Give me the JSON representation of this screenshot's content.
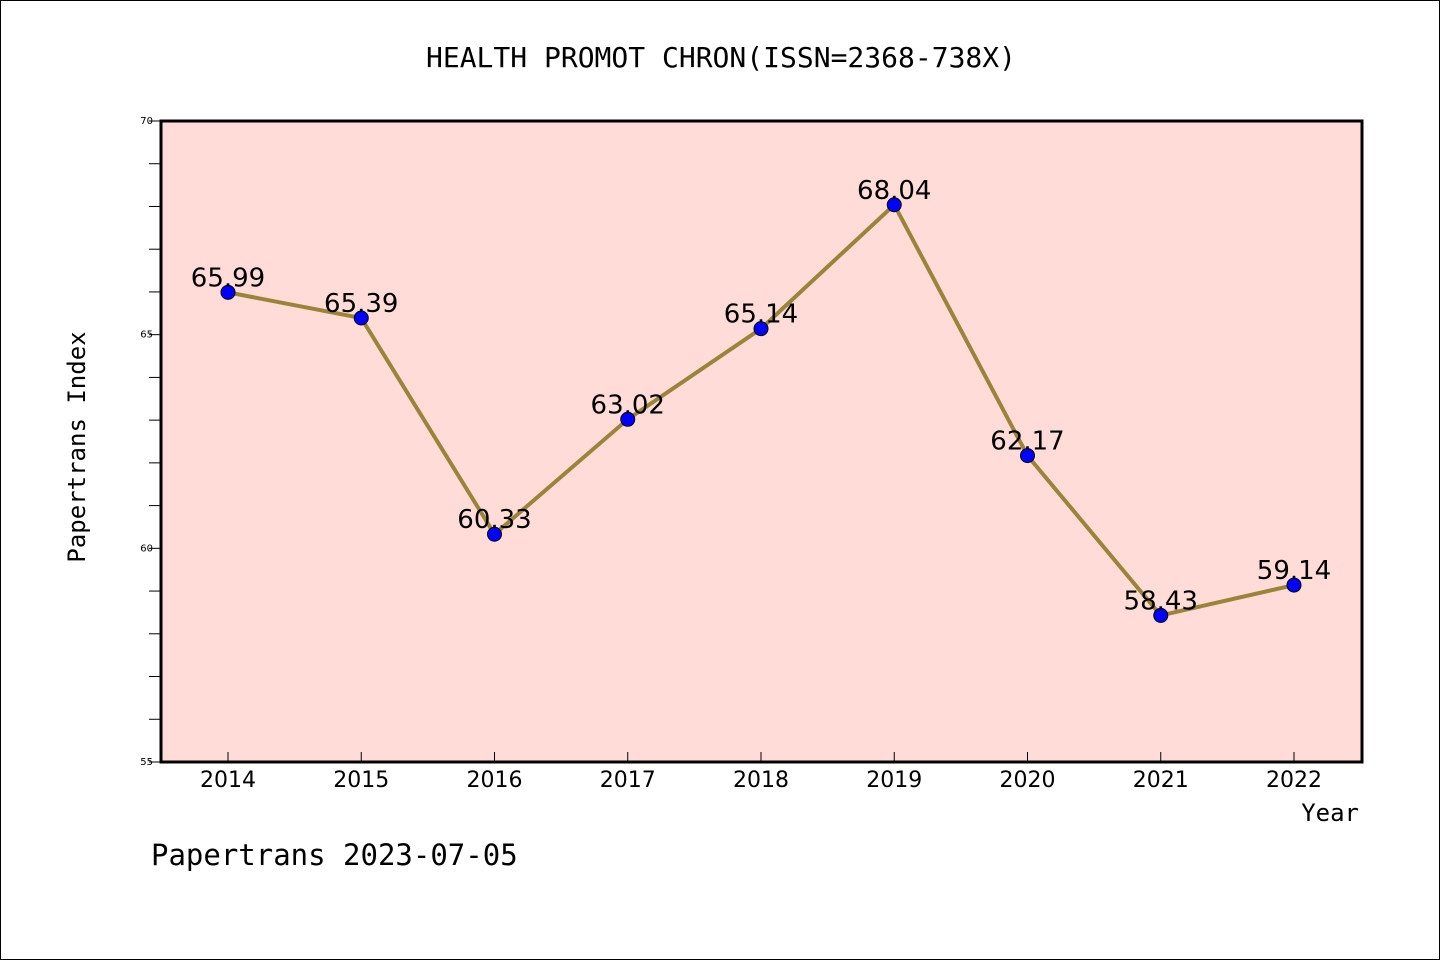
{
  "chart_data": {
    "type": "line",
    "title": "HEALTH PROMOT CHRON(ISSN=2368-738X)",
    "xlabel": "Year",
    "ylabel": "Papertrans Index",
    "x": [
      "2014",
      "2015",
      "2016",
      "2017",
      "2018",
      "2019",
      "2020",
      "2021",
      "2022"
    ],
    "series": [
      {
        "values": [
          65.99,
          65.39,
          60.33,
          63.02,
          65.14,
          68.04,
          62.17,
          58.43,
          59.14
        ],
        "labels": [
          "65.99",
          "65.39",
          "60.33",
          "63.02",
          "65.14",
          "68.04",
          "62.17",
          "58.43",
          "59.14"
        ]
      }
    ],
    "ylim": [
      55,
      70
    ],
    "yticks": [
      "55",
      "60",
      "65",
      "70"
    ],
    "ytick_values": [
      55,
      60,
      65,
      70
    ],
    "grid": false,
    "colors": {
      "plot_background": "#ffdcd8",
      "line": "#9b8339",
      "marker": "#0000ff"
    }
  },
  "footer": {
    "text": "Papertrans 2023-07-05"
  }
}
